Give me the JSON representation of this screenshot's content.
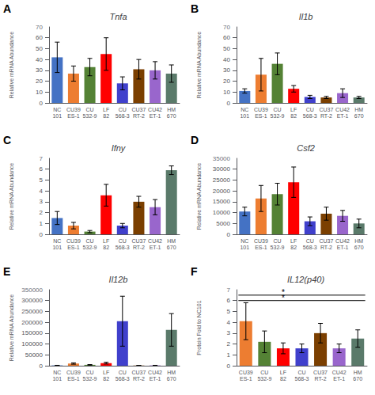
{
  "chart_data": [
    {
      "type": "bar",
      "title": "Tnfa",
      "ylabel": "Relative mRNA Abundance",
      "panel_label": "A",
      "ylim_label": "70",
      "categories": [
        "NC\n101",
        "CU39\nES-1",
        "CU\n532-9",
        "LF\n82",
        "CU\n568-3",
        "CU37\nRT-2",
        "CU42\nET-1",
        "HM\n670"
      ],
      "values": [
        42,
        27,
        33,
        45,
        18,
        31,
        30,
        27
      ],
      "errors": [
        14,
        7,
        8,
        15,
        6,
        9,
        8,
        8
      ],
      "colors": [
        "#4472C4",
        "#ED7D31",
        "#548235",
        "#FF0000",
        "#4040CC",
        "#7B3F00",
        "#9966CC",
        "#5A7A6A"
      ],
      "ylim": [
        0,
        70
      ],
      "yticks": [
        0,
        10,
        20,
        30,
        40,
        50,
        60
      ],
      "grid": false
    },
    {
      "type": "bar",
      "title": "Il1b",
      "ylabel": "Relative mRNA Abundance",
      "panel_label": "B",
      "ylim_label": "70",
      "categories": [
        "NC\n101",
        "CU39\nES-1",
        "CU\n532-9",
        "LF\n82",
        "CU\n568-3",
        "CU37\nRT-2",
        "CU42\nET-1",
        "HM\n670"
      ],
      "values": [
        11,
        26,
        36,
        13,
        5.5,
        5,
        9,
        5
      ],
      "errors": [
        2,
        15,
        10,
        3,
        1.5,
        1,
        4,
        1
      ],
      "colors": [
        "#4472C4",
        "#ED7D31",
        "#548235",
        "#FF0000",
        "#4040CC",
        "#7B3F00",
        "#9966CC",
        "#5A7A6A"
      ],
      "ylim": [
        0,
        70
      ],
      "yticks": [
        0,
        10,
        20,
        30,
        40,
        50,
        60
      ],
      "grid": false
    },
    {
      "type": "bar",
      "title": "Ifny",
      "ylabel": "Relative mRNA Abundance",
      "panel_label": "C",
      "ylim_label": "7",
      "categories": [
        "NC\n101",
        "CU39\nES-1",
        "CU\n532-9",
        "LF\n82",
        "CU\n568-3",
        "CU37\nRT-2",
        "CU42\nET-1",
        "HM\n670"
      ],
      "values": [
        1.5,
        0.8,
        0.25,
        3.6,
        0.8,
        3.0,
        2.5,
        5.9
      ],
      "errors": [
        0.6,
        0.3,
        0.1,
        1.0,
        0.2,
        0.5,
        0.7,
        0.4
      ],
      "colors": [
        "#4472C4",
        "#ED7D31",
        "#548235",
        "#FF0000",
        "#4040CC",
        "#7B3F00",
        "#9966CC",
        "#5A7A6A"
      ],
      "ylim": [
        0,
        7
      ],
      "yticks": [
        0,
        1,
        2,
        3,
        4,
        5,
        6
      ],
      "grid": false
    },
    {
      "type": "bar",
      "title": "Csf2",
      "ylabel": "Relative mRNA Abundance",
      "panel_label": "D",
      "ylim_label": "35000",
      "categories": [
        "NC\n101",
        "CU39\nES-1",
        "CU\n532-9",
        "LF\n82",
        "CU\n568-3",
        "CU37\nRT-2",
        "CU42\nET-1",
        "HM\n670"
      ],
      "values": [
        10500,
        16500,
        18500,
        24000,
        6000,
        9500,
        8500,
        5000
      ],
      "errors": [
        2000,
        6000,
        5000,
        7000,
        2000,
        3000,
        2500,
        2000
      ],
      "colors": [
        "#4472C4",
        "#ED7D31",
        "#548235",
        "#FF0000",
        "#4040CC",
        "#7B3F00",
        "#9966CC",
        "#5A7A6A"
      ],
      "ylim": [
        0,
        35000
      ],
      "yticks": [
        0,
        5000,
        10000,
        15000,
        20000,
        25000,
        30000
      ],
      "grid": false
    },
    {
      "type": "bar",
      "title": "Il12b",
      "ylabel": "Relative mRNA Abundance",
      "panel_label": "E",
      "ylim_label": "350000",
      "categories": [
        "NC\n101",
        "CU39\nES-1",
        "CU\n532-9",
        "LF\n82",
        "CU\n568-3",
        "CU37\nRT-2",
        "CU42\nET-1",
        "HM\n670"
      ],
      "values": [
        1500,
        10000,
        4000,
        12000,
        205000,
        1000,
        1500,
        165000
      ],
      "errors": [
        400,
        3000,
        1200,
        4000,
        115000,
        300,
        400,
        75000
      ],
      "colors": [
        "#4472C4",
        "#ED7D31",
        "#548235",
        "#FF0000",
        "#4040CC",
        "#7B3F00",
        "#9966CC",
        "#5A7A6A"
      ],
      "ylim": [
        0,
        350000
      ],
      "yticks": [
        0,
        50000,
        100000,
        150000,
        200000,
        250000,
        300000
      ],
      "grid": false
    },
    {
      "type": "bar",
      "title": "IL12(p40)",
      "ylabel": "Protein Fold to NC101",
      "panel_label": "F",
      "ylim_label": "7",
      "categories": [
        "CU39\nES-1",
        "CU\n532-9",
        "LF\n82",
        "CU\n568-3",
        "CU37\nRT-2",
        "CU42\nET-1",
        "HM\n670"
      ],
      "values": [
        4.1,
        2.2,
        1.6,
        1.6,
        3.0,
        1.6,
        2.5
      ],
      "errors": [
        1.7,
        1.0,
        0.5,
        0.4,
        0.9,
        0.4,
        0.8
      ],
      "colors": [
        "#ED7D31",
        "#548235",
        "#FF0000",
        "#4040CC",
        "#7B3F00",
        "#9966CC",
        "#5A7A6A"
      ],
      "ylim": [
        0,
        7
      ],
      "yticks": [
        0,
        1,
        2,
        3,
        4,
        5,
        6
      ],
      "grid": false,
      "annotations": [
        {
          "text": "*",
          "x": 2.0,
          "y": 6.5,
          "x1": -0.4,
          "x2": 6.4
        },
        {
          "text": "*",
          "x": 2.0,
          "y": 6.0,
          "x1": -0.4,
          "x2": 6.4
        }
      ]
    }
  ]
}
